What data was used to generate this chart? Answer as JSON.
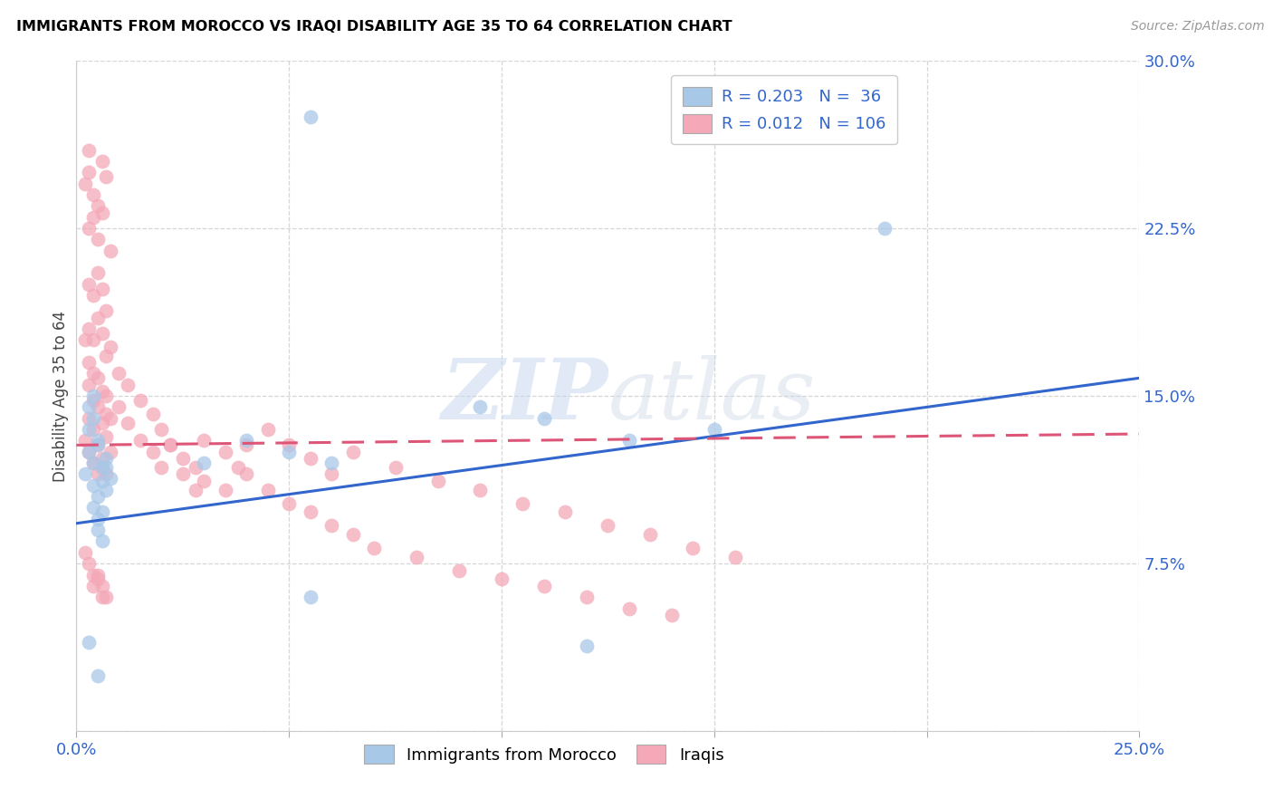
{
  "title": "IMMIGRANTS FROM MOROCCO VS IRAQI DISABILITY AGE 35 TO 64 CORRELATION CHART",
  "source": "Source: ZipAtlas.com",
  "ylabel_label": "Disability Age 35 to 64",
  "x_min": 0.0,
  "x_max": 0.25,
  "y_min": 0.0,
  "y_max": 0.3,
  "color_morocco": "#a8c8e8",
  "color_iraq": "#f4a8b8",
  "line_color_morocco": "#3366cc",
  "line_color_iraq": "#dd5577",
  "watermark_zip": "ZIP",
  "watermark_atlas": "atlas",
  "morocco_line_x0": 0.0,
  "morocco_line_y0": 0.093,
  "morocco_line_x1": 0.25,
  "morocco_line_y1": 0.158,
  "iraq_line_x0": 0.0,
  "iraq_line_y0": 0.128,
  "iraq_line_x1": 0.25,
  "iraq_line_y1": 0.133,
  "morocco_x": [
    0.002,
    0.003,
    0.004,
    0.004,
    0.005,
    0.005,
    0.005,
    0.006,
    0.006,
    0.007,
    0.007,
    0.008,
    0.003,
    0.004,
    0.005,
    0.006,
    0.004,
    0.005,
    0.007,
    0.003,
    0.006,
    0.004,
    0.03,
    0.04,
    0.05,
    0.06,
    0.095,
    0.055,
    0.11,
    0.13,
    0.15,
    0.19,
    0.003,
    0.005,
    0.12,
    0.055
  ],
  "morocco_y": [
    0.115,
    0.125,
    0.12,
    0.11,
    0.105,
    0.13,
    0.095,
    0.112,
    0.118,
    0.108,
    0.122,
    0.113,
    0.135,
    0.1,
    0.09,
    0.085,
    0.14,
    0.128,
    0.118,
    0.145,
    0.098,
    0.15,
    0.12,
    0.13,
    0.125,
    0.12,
    0.145,
    0.275,
    0.14,
    0.13,
    0.135,
    0.225,
    0.04,
    0.025,
    0.038,
    0.06
  ],
  "iraq_x": [
    0.002,
    0.003,
    0.003,
    0.004,
    0.004,
    0.005,
    0.005,
    0.006,
    0.006,
    0.007,
    0.007,
    0.008,
    0.003,
    0.003,
    0.004,
    0.004,
    0.005,
    0.005,
    0.006,
    0.006,
    0.007,
    0.007,
    0.008,
    0.002,
    0.003,
    0.004,
    0.005,
    0.006,
    0.007,
    0.008,
    0.003,
    0.004,
    0.005,
    0.006,
    0.007,
    0.008,
    0.003,
    0.004,
    0.005,
    0.006,
    0.002,
    0.003,
    0.004,
    0.005,
    0.006,
    0.007,
    0.003,
    0.004,
    0.005,
    0.006,
    0.01,
    0.012,
    0.015,
    0.018,
    0.02,
    0.022,
    0.025,
    0.028,
    0.01,
    0.012,
    0.015,
    0.018,
    0.02,
    0.022,
    0.025,
    0.028,
    0.03,
    0.035,
    0.038,
    0.04,
    0.045,
    0.05,
    0.055,
    0.06,
    0.03,
    0.035,
    0.04,
    0.045,
    0.05,
    0.055,
    0.06,
    0.065,
    0.07,
    0.08,
    0.09,
    0.1,
    0.11,
    0.12,
    0.13,
    0.14,
    0.065,
    0.075,
    0.085,
    0.095,
    0.105,
    0.115,
    0.125,
    0.135,
    0.145,
    0.155,
    0.002,
    0.003,
    0.004,
    0.005,
    0.006,
    0.007
  ],
  "iraq_y": [
    0.13,
    0.125,
    0.14,
    0.135,
    0.12,
    0.115,
    0.128,
    0.118,
    0.122,
    0.132,
    0.115,
    0.125,
    0.155,
    0.165,
    0.16,
    0.148,
    0.145,
    0.158,
    0.152,
    0.138,
    0.142,
    0.15,
    0.14,
    0.175,
    0.18,
    0.175,
    0.185,
    0.178,
    0.168,
    0.172,
    0.2,
    0.195,
    0.205,
    0.198,
    0.188,
    0.215,
    0.225,
    0.23,
    0.22,
    0.232,
    0.245,
    0.25,
    0.24,
    0.235,
    0.255,
    0.248,
    0.26,
    0.065,
    0.07,
    0.06,
    0.145,
    0.138,
    0.13,
    0.125,
    0.118,
    0.128,
    0.115,
    0.108,
    0.16,
    0.155,
    0.148,
    0.142,
    0.135,
    0.128,
    0.122,
    0.118,
    0.13,
    0.125,
    0.118,
    0.128,
    0.135,
    0.128,
    0.122,
    0.115,
    0.112,
    0.108,
    0.115,
    0.108,
    0.102,
    0.098,
    0.092,
    0.088,
    0.082,
    0.078,
    0.072,
    0.068,
    0.065,
    0.06,
    0.055,
    0.052,
    0.125,
    0.118,
    0.112,
    0.108,
    0.102,
    0.098,
    0.092,
    0.088,
    0.082,
    0.078,
    0.08,
    0.075,
    0.07,
    0.068,
    0.065,
    0.06
  ]
}
